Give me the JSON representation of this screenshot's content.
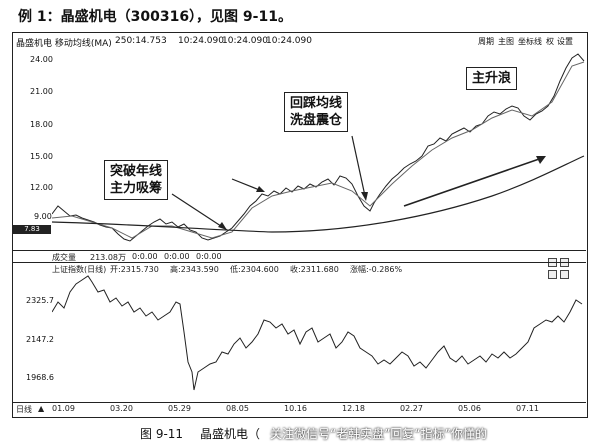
{
  "caption_top": "例 1：晶盛机电（300316），见图 9-11。",
  "window": {
    "title": "晶盛机电 移动均线(MA)",
    "ma_values": [
      "250:14.753",
      "10:24.090",
      "10:24.090",
      "10:24.090"
    ],
    "toolbar": [
      "周期",
      "主图",
      "坐标线",
      "权",
      "设置"
    ]
  },
  "price_panel": {
    "y_ticks": [
      "24.00",
      "21.00",
      "18.00",
      "15.00",
      "12.00",
      "9.00"
    ],
    "left_marker": "7.83"
  },
  "annotations": {
    "break_year_line": [
      "突破年线",
      "主力吸筹"
    ],
    "pullback": [
      "回踩均线",
      "洗盘震仓"
    ],
    "main_wave": "主升浪"
  },
  "volume_bar": {
    "label": "成交量",
    "value": "213.08万",
    "a": "0:0.00",
    "b": "0:0.00",
    "c": "0:0.00"
  },
  "index_panel": {
    "info": {
      "name": "上证指数(日线)",
      "open": "开:2315.730",
      "high": "高:2343.590",
      "low": "低:2304.600",
      "close": "收:2311.680",
      "change": "涨幅:-0.286%"
    },
    "y_ticks": [
      "2325.7",
      "2147.2",
      "1968.6"
    ]
  },
  "x_axis": {
    "period_label": "日线",
    "ticks": [
      "01.09",
      "03.20",
      "05.29",
      "08.05",
      "10.16",
      "12.18",
      "02.27",
      "05.06",
      "07.11"
    ]
  },
  "caption_bottom": {
    "fig": "图 9-11",
    "name": "晶盛机电（"
  },
  "watermark": "关注微信号“老韩实盘”回复“指标”你懂的"
}
